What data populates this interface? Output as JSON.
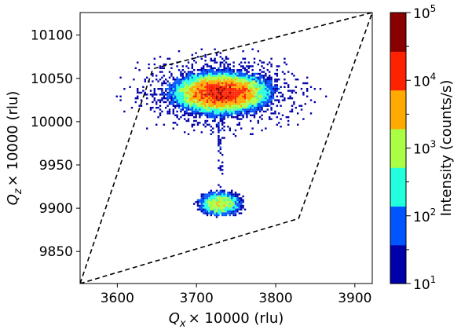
{
  "chart_data": {
    "type": "heatmap",
    "title": "",
    "xlabel": {
      "q": "Q",
      "sub": "x",
      "rest": "×  10000 (rlu)"
    },
    "ylabel": {
      "q": "Q",
      "sub": "z",
      "rest": "×  10000 (rlu)"
    },
    "xlim": [
      3553,
      3922
    ],
    "ylim": [
      9813,
      10126
    ],
    "x_ticks": [
      3600,
      3700,
      3800,
      3900
    ],
    "y_ticks": [
      9850,
      9900,
      9950,
      10000,
      10050,
      10100
    ],
    "colorbar": {
      "label": "Intensity (counts/s)",
      "scale": "log",
      "range": [
        10,
        100000
      ],
      "levels_per_decade": 2,
      "major_ticks": [
        {
          "base": "10",
          "exp": "1"
        },
        {
          "base": "10",
          "exp": "2"
        },
        {
          "base": "10",
          "exp": "3"
        },
        {
          "base": "10",
          "exp": "4"
        },
        {
          "base": "10",
          "exp": "5"
        }
      ],
      "colors": [
        "#0000aa",
        "#0055ff",
        "#22ffdd",
        "#aaff44",
        "#ffaa00",
        "#ff2200",
        "#880000"
      ]
    },
    "peaks": [
      {
        "name": "upper peak",
        "center": [
          3731,
          10033
        ],
        "sigma_x": 18,
        "sigma_z": 7,
        "max_intensity": 25000
      },
      {
        "name": "lower peak",
        "center": [
          3730,
          9905
        ],
        "sigma_x": 10,
        "sigma_z": 5,
        "max_intensity": 1500
      }
    ],
    "streak": {
      "x": 3730,
      "z_range": [
        9915,
        10020
      ],
      "intensity": 15
    },
    "boundary": [
      [
        3553,
        9813
      ],
      [
        3645,
        10061
      ],
      [
        3922,
        10126
      ],
      [
        3829,
        9888
      ],
      [
        3553,
        9813
      ]
    ],
    "boundary_style": "dashed"
  }
}
